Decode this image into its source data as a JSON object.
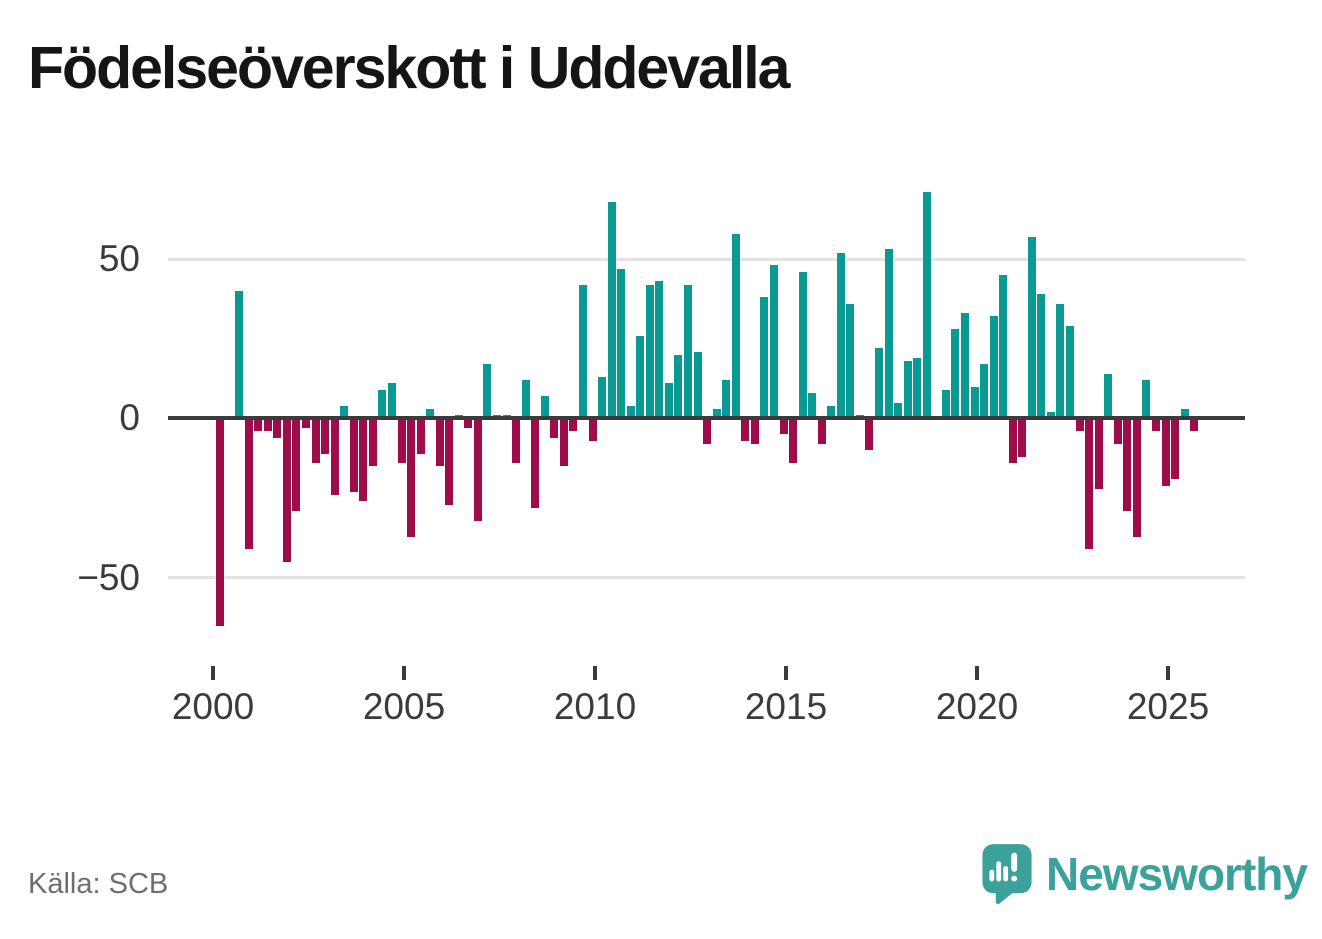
{
  "chart_data": {
    "type": "bar",
    "title": "Födelseöverskott i Uddevalla",
    "frequency": "quarterly",
    "start_period": "2000Q1",
    "end_period": "2025Q3",
    "values": [
      -65,
      0,
      40,
      -41,
      -4,
      -4,
      -6,
      -45,
      -29,
      -3,
      -14,
      -11,
      -24,
      4,
      -23,
      -26,
      -15,
      9,
      11,
      -14,
      -37,
      -11,
      3,
      -15,
      -27,
      1,
      -3,
      -32,
      17,
      1,
      1,
      -14,
      12,
      -28,
      7,
      -6,
      -15,
      -4,
      42,
      -7,
      13,
      68,
      47,
      4,
      26,
      42,
      43,
      11,
      20,
      42,
      21,
      -8,
      3,
      12,
      58,
      -7,
      -8,
      38,
      48,
      -5,
      -14,
      46,
      8,
      -8,
      4,
      52,
      36,
      1,
      -10,
      22,
      53,
      5,
      18,
      19,
      71,
      0,
      9,
      28,
      33,
      10,
      17,
      32,
      45,
      -14,
      -12,
      57,
      39,
      2,
      36,
      29,
      -4,
      -41,
      -22,
      14,
      -8,
      -29,
      -37,
      12,
      -4,
      -21,
      -19,
      3,
      -4
    ],
    "x_axis": {
      "tick_years": [
        "2000",
        "2005",
        "2010",
        "2015",
        "2020",
        "2025"
      ]
    },
    "y_axis": {
      "tick_values": [
        50,
        0,
        -50
      ],
      "tick_labels": [
        "50",
        "0",
        "−50"
      ]
    },
    "ylim": [
      -70,
      75
    ],
    "grid": "horizontal",
    "legend": "none",
    "colors": {
      "positive": "#099a94",
      "negative": "#9e0c49"
    }
  },
  "footer": {
    "source_label": "Källa: SCB",
    "brand_name": "Newsworthy",
    "brand_color": "#3ba19b"
  }
}
